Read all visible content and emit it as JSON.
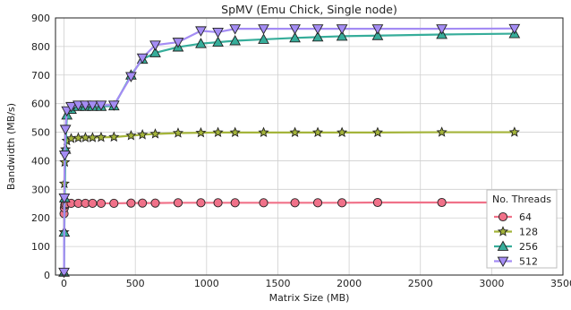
{
  "chart_data": {
    "type": "line",
    "title": "SpMV (Emu Chick, Single node)",
    "xlabel": "Matrix Size (MB)",
    "ylabel": "Bandwidth (MB/s)",
    "xlim": [
      -60,
      3500
    ],
    "ylim": [
      0,
      900
    ],
    "xticks": [
      0,
      500,
      1000,
      1500,
      2000,
      2500,
      3000,
      3500
    ],
    "yticks": [
      0,
      100,
      200,
      300,
      400,
      500,
      600,
      700,
      800,
      900
    ],
    "grid": true,
    "legend": {
      "title": "No. Threads",
      "placement": "lower-right"
    },
    "series": [
      {
        "name": "64",
        "color": "#f07189",
        "marker": "circle",
        "x": [
          0,
          2,
          5,
          10,
          20,
          50,
          100,
          150,
          200,
          260,
          350,
          470,
          550,
          640,
          800,
          960,
          1080,
          1200,
          1400,
          1620,
          1780,
          1950,
          2200,
          2650,
          3160
        ],
        "y": [
          215,
          235,
          245,
          249,
          250,
          251,
          251,
          251,
          251,
          251,
          251,
          252,
          252,
          252,
          253,
          253,
          253,
          253,
          253,
          253,
          253,
          253,
          254,
          254,
          254
        ]
      },
      {
        "name": "128",
        "color": "#a4b43a",
        "marker": "star",
        "x": [
          0,
          2,
          5,
          10,
          20,
          50,
          100,
          150,
          200,
          260,
          350,
          470,
          550,
          640,
          800,
          960,
          1080,
          1200,
          1400,
          1620,
          1780,
          1950,
          2200,
          2650,
          3160
        ],
        "y": [
          150,
          320,
          395,
          440,
          470,
          478,
          480,
          481,
          481,
          482,
          483,
          488,
          491,
          494,
          497,
          498,
          499,
          499,
          499,
          499,
          499,
          499,
          499,
          500,
          500
        ]
      },
      {
        "name": "256",
        "color": "#36ad9a",
        "marker": "triangle-up",
        "x": [
          0,
          2,
          5,
          10,
          20,
          50,
          100,
          150,
          200,
          260,
          350,
          470,
          550,
          640,
          800,
          960,
          1080,
          1200,
          1400,
          1620,
          1780,
          1950,
          2200,
          2650,
          3160
        ],
        "y": [
          10,
          150,
          270,
          440,
          560,
          580,
          590,
          590,
          590,
          590,
          592,
          700,
          755,
          778,
          798,
          810,
          815,
          820,
          825,
          830,
          833,
          836,
          838,
          842,
          845
        ]
      },
      {
        "name": "512",
        "color": "#a48cf4",
        "marker": "triangle-down",
        "x": [
          0,
          2,
          5,
          10,
          20,
          50,
          100,
          150,
          200,
          260,
          350,
          470,
          550,
          640,
          800,
          960,
          1080,
          1200,
          1400,
          1620,
          1780,
          1950,
          2200,
          2650,
          3160
        ],
        "y": [
          10,
          270,
          420,
          510,
          575,
          590,
          595,
          595,
          595,
          595,
          595,
          695,
          760,
          805,
          815,
          855,
          850,
          862,
          862,
          862,
          862,
          862,
          862,
          862,
          863
        ]
      }
    ]
  }
}
